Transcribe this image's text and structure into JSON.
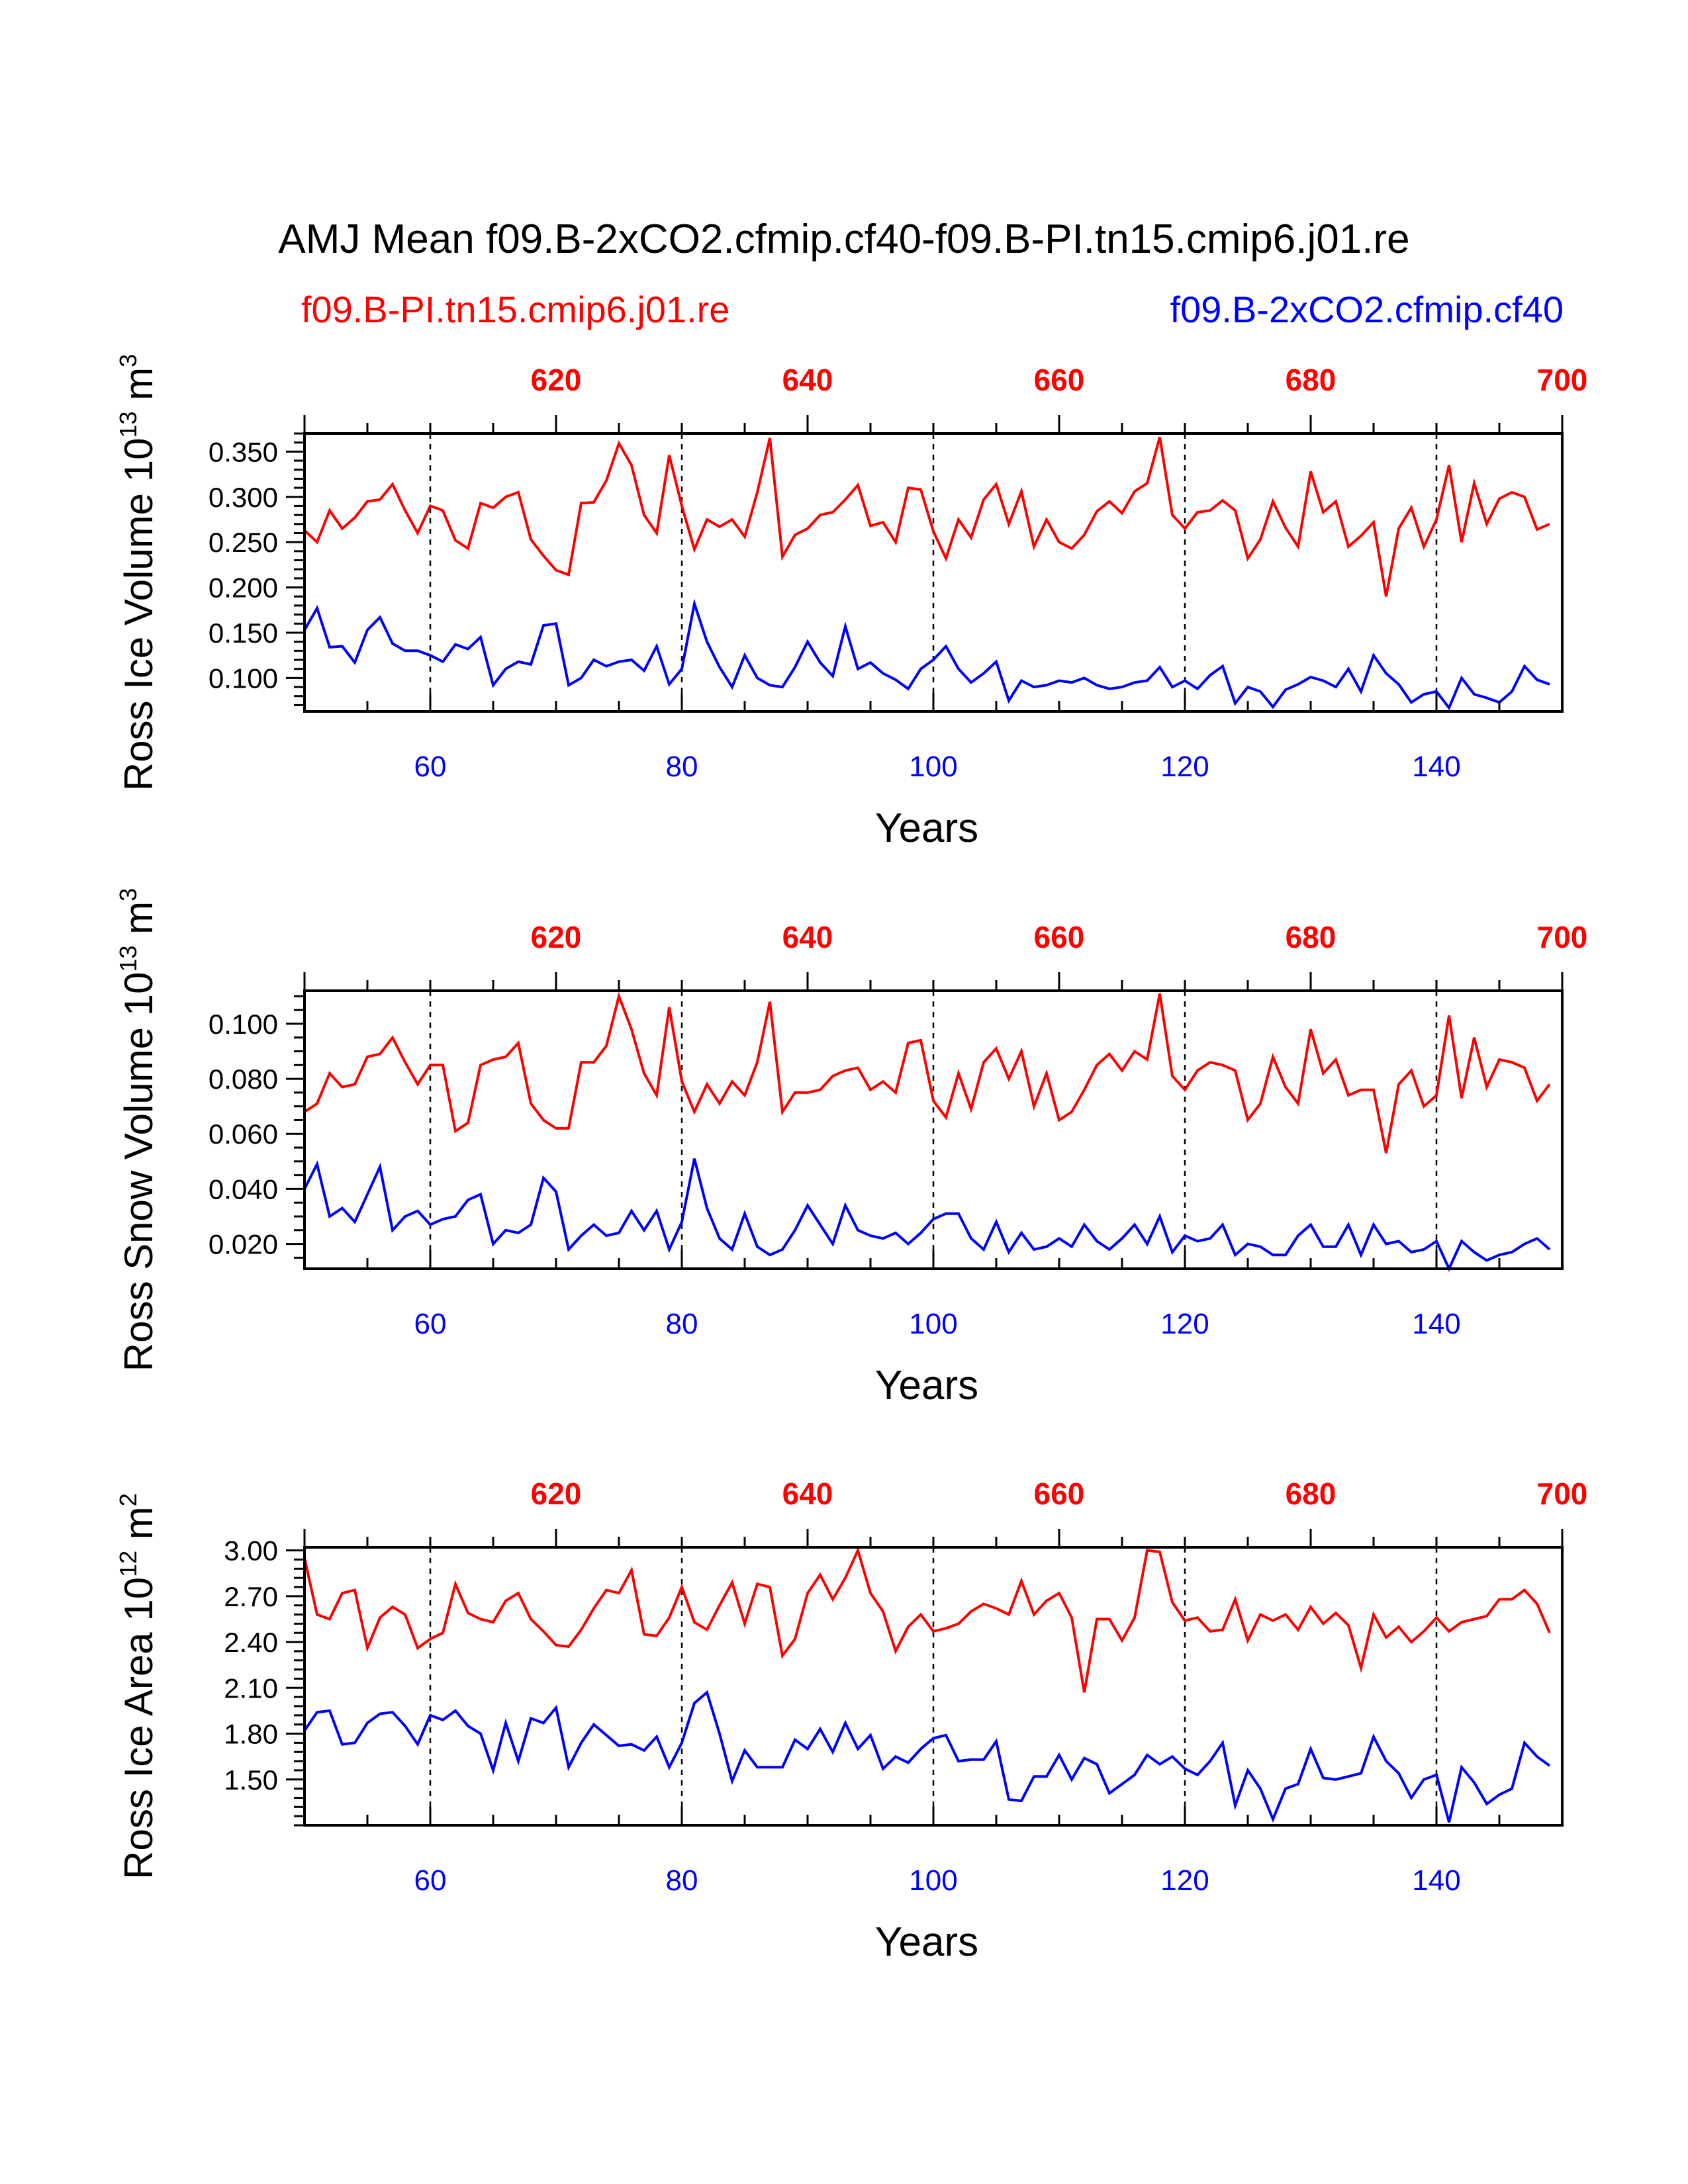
{
  "title": "AMJ Mean f09.B-2xCO2.cfmip.cf40-f09.B-PI.tn15.cmip6.j01.re",
  "subtitle_left": "f09.B-PI.tn15.cmip6.j01.re",
  "subtitle_right": "f09.B-2xCO2.cfmip.cf40",
  "colors": {
    "pi": "#ff0000",
    "co2": "#0000ff",
    "axis": "#000000"
  },
  "chart_data": [
    {
      "type": "line",
      "ylabel_main": "Ross Ice Volume 10",
      "ylabel_exp": "13",
      "ylabel_unit": " m",
      "ylabel_unit_exp": "3",
      "xlabel": "Years",
      "xlim": [
        50,
        150
      ],
      "ylim": [
        0.063,
        0.37
      ],
      "yticks": [
        {
          "v": 0.1,
          "label": "0.100"
        },
        {
          "v": 0.15,
          "label": "0.150"
        },
        {
          "v": 0.2,
          "label": "0.200"
        },
        {
          "v": 0.25,
          "label": "0.250"
        },
        {
          "v": 0.3,
          "label": "0.300"
        },
        {
          "v": 0.35,
          "label": "0.350"
        }
      ],
      "yminor_step": 0.01,
      "xticks": [
        60,
        80,
        100,
        120,
        140
      ],
      "xtick_labels": [
        "60",
        "80",
        "100",
        "120",
        "140"
      ],
      "top_ticks": [
        620,
        640,
        660,
        680,
        700
      ],
      "top_tick_labels": [
        "620",
        "640",
        "660",
        "680",
        "700"
      ],
      "top_offset": 550,
      "vlines": [
        60,
        80,
        100,
        120,
        140
      ],
      "x_start": 50,
      "series": [
        {
          "name": "f09.B-PI.tn15.cmip6.j01.re",
          "color": "#ff0000",
          "values": [
            0.263,
            0.25,
            0.285,
            0.265,
            0.277,
            0.295,
            0.297,
            0.314,
            0.285,
            0.26,
            0.29,
            0.285,
            0.252,
            0.243,
            0.293,
            0.288,
            0.3,
            0.305,
            0.253,
            0.235,
            0.219,
            0.214,
            0.293,
            0.294,
            0.318,
            0.359,
            0.335,
            0.28,
            0.26,
            0.346,
            0.29,
            0.242,
            0.275,
            0.267,
            0.275,
            0.256,
            0.305,
            0.365,
            0.234,
            0.258,
            0.265,
            0.28,
            0.283,
            0.297,
            0.313,
            0.268,
            0.272,
            0.25,
            0.31,
            0.308,
            0.262,
            0.232,
            0.275,
            0.255,
            0.297,
            0.314,
            0.27,
            0.306,
            0.245,
            0.275,
            0.25,
            0.243,
            0.258,
            0.284,
            0.295,
            0.282,
            0.306,
            0.315,
            0.366,
            0.28,
            0.265,
            0.283,
            0.285,
            0.296,
            0.285,
            0.232,
            0.253,
            0.295,
            0.266,
            0.245,
            0.328,
            0.283,
            0.295,
            0.245,
            0.257,
            0.272,
            0.19,
            0.265,
            0.288,
            0.245,
            0.275,
            0.335,
            0.25,
            0.315,
            0.27,
            0.298,
            0.305,
            0.3,
            0.264,
            0.27
          ]
        },
        {
          "name": "f09.B-2xCO2.cfmip.cf40",
          "color": "#0000ff",
          "values": [
            0.153,
            0.177,
            0.134,
            0.135,
            0.117,
            0.153,
            0.167,
            0.138,
            0.13,
            0.13,
            0.125,
            0.118,
            0.137,
            0.132,
            0.145,
            0.092,
            0.11,
            0.118,
            0.115,
            0.158,
            0.16,
            0.092,
            0.1,
            0.12,
            0.113,
            0.118,
            0.12,
            0.108,
            0.135,
            0.093,
            0.11,
            0.182,
            0.14,
            0.112,
            0.09,
            0.125,
            0.1,
            0.092,
            0.09,
            0.112,
            0.14,
            0.117,
            0.102,
            0.157,
            0.11,
            0.117,
            0.105,
            0.098,
            0.088,
            0.11,
            0.12,
            0.135,
            0.11,
            0.095,
            0.105,
            0.118,
            0.075,
            0.097,
            0.09,
            0.092,
            0.097,
            0.095,
            0.1,
            0.092,
            0.088,
            0.09,
            0.095,
            0.097,
            0.112,
            0.09,
            0.097,
            0.088,
            0.103,
            0.113,
            0.072,
            0.09,
            0.085,
            0.068,
            0.087,
            0.093,
            0.101,
            0.097,
            0.09,
            0.11,
            0.085,
            0.125,
            0.105,
            0.093,
            0.073,
            0.082,
            0.085,
            0.067,
            0.1,
            0.082,
            0.078,
            0.073,
            0.085,
            0.113,
            0.098,
            0.093
          ]
        }
      ]
    },
    {
      "type": "line",
      "ylabel_main": "Ross Snow Volume 10",
      "ylabel_exp": "13",
      "ylabel_unit": " m",
      "ylabel_unit_exp": "3",
      "xlabel": "Years",
      "xlim": [
        50,
        150
      ],
      "ylim": [
        0.011,
        0.112
      ],
      "yticks": [
        {
          "v": 0.02,
          "label": "0.020"
        },
        {
          "v": 0.04,
          "label": "0.040"
        },
        {
          "v": 0.06,
          "label": "0.060"
        },
        {
          "v": 0.08,
          "label": "0.080"
        },
        {
          "v": 0.1,
          "label": "0.100"
        }
      ],
      "yminor_step": 0.005,
      "xticks": [
        60,
        80,
        100,
        120,
        140
      ],
      "xtick_labels": [
        "60",
        "80",
        "100",
        "120",
        "140"
      ],
      "top_ticks": [
        620,
        640,
        660,
        680,
        700
      ],
      "top_tick_labels": [
        "620",
        "640",
        "660",
        "680",
        "700"
      ],
      "top_offset": 550,
      "vlines": [
        60,
        80,
        100,
        120,
        140
      ],
      "x_start": 50,
      "series": [
        {
          "name": "f09.B-PI.tn15.cmip6.j01.re",
          "color": "#ff0000",
          "values": [
            0.068,
            0.071,
            0.082,
            0.077,
            0.078,
            0.088,
            0.089,
            0.095,
            0.086,
            0.078,
            0.085,
            0.085,
            0.061,
            0.064,
            0.085,
            0.087,
            0.088,
            0.093,
            0.071,
            0.065,
            0.062,
            0.062,
            0.086,
            0.086,
            0.092,
            0.11,
            0.098,
            0.082,
            0.074,
            0.106,
            0.079,
            0.068,
            0.078,
            0.071,
            0.079,
            0.074,
            0.086,
            0.108,
            0.068,
            0.075,
            0.075,
            0.076,
            0.081,
            0.083,
            0.084,
            0.076,
            0.079,
            0.075,
            0.093,
            0.094,
            0.072,
            0.066,
            0.082,
            0.069,
            0.086,
            0.091,
            0.08,
            0.09,
            0.07,
            0.082,
            0.065,
            0.068,
            0.076,
            0.085,
            0.089,
            0.083,
            0.09,
            0.087,
            0.111,
            0.081,
            0.076,
            0.083,
            0.086,
            0.085,
            0.083,
            0.065,
            0.071,
            0.088,
            0.077,
            0.071,
            0.098,
            0.082,
            0.087,
            0.074,
            0.076,
            0.076,
            0.053,
            0.078,
            0.083,
            0.07,
            0.074,
            0.103,
            0.073,
            0.095,
            0.077,
            0.087,
            0.086,
            0.084,
            0.072,
            0.078
          ]
        },
        {
          "name": "f09.B-2xCO2.cfmip.cf40",
          "color": "#0000ff",
          "values": [
            0.04,
            0.049,
            0.03,
            0.033,
            0.028,
            0.038,
            0.048,
            0.025,
            0.03,
            0.032,
            0.027,
            0.029,
            0.03,
            0.036,
            0.038,
            0.02,
            0.025,
            0.024,
            0.027,
            0.044,
            0.039,
            0.018,
            0.023,
            0.027,
            0.023,
            0.024,
            0.032,
            0.025,
            0.032,
            0.018,
            0.028,
            0.051,
            0.033,
            0.022,
            0.018,
            0.031,
            0.019,
            0.016,
            0.018,
            0.025,
            0.034,
            0.027,
            0.02,
            0.034,
            0.025,
            0.023,
            0.022,
            0.024,
            0.02,
            0.024,
            0.029,
            0.031,
            0.031,
            0.022,
            0.018,
            0.028,
            0.017,
            0.024,
            0.018,
            0.019,
            0.022,
            0.019,
            0.027,
            0.021,
            0.018,
            0.022,
            0.027,
            0.02,
            0.03,
            0.017,
            0.023,
            0.021,
            0.022,
            0.027,
            0.016,
            0.02,
            0.019,
            0.016,
            0.016,
            0.023,
            0.027,
            0.019,
            0.019,
            0.027,
            0.016,
            0.027,
            0.02,
            0.021,
            0.017,
            0.018,
            0.021,
            0.011,
            0.021,
            0.017,
            0.014,
            0.016,
            0.017,
            0.02,
            0.022,
            0.018
          ]
        }
      ]
    },
    {
      "type": "line",
      "ylabel_main": "Ross Ice Area 10",
      "ylabel_exp": "12",
      "ylabel_unit": " m",
      "ylabel_unit_exp": "2",
      "xlabel": "Years",
      "xlim": [
        50,
        150
      ],
      "ylim": [
        1.2,
        3.02
      ],
      "yticks": [
        {
          "v": 1.5,
          "label": "1.50"
        },
        {
          "v": 1.8,
          "label": "1.80"
        },
        {
          "v": 2.1,
          "label": "2.10"
        },
        {
          "v": 2.4,
          "label": "2.40"
        },
        {
          "v": 2.7,
          "label": "2.70"
        },
        {
          "v": 3.0,
          "label": "3.00"
        }
      ],
      "yminor_step": 0.06,
      "xticks": [
        60,
        80,
        100,
        120,
        140
      ],
      "xtick_labels": [
        "60",
        "80",
        "100",
        "120",
        "140"
      ],
      "top_ticks": [
        620,
        640,
        660,
        680,
        700
      ],
      "top_tick_labels": [
        "620",
        "640",
        "660",
        "680",
        "700"
      ],
      "top_offset": 550,
      "vlines": [
        60,
        80,
        100,
        120,
        140
      ],
      "x_start": 50,
      "series": [
        {
          "name": "f09.B-PI.tn15.cmip6.j01.re",
          "color": "#ff0000",
          "values": [
            2.95,
            2.58,
            2.55,
            2.72,
            2.74,
            2.36,
            2.56,
            2.63,
            2.58,
            2.36,
            2.42,
            2.46,
            2.78,
            2.59,
            2.55,
            2.53,
            2.67,
            2.72,
            2.55,
            2.47,
            2.38,
            2.37,
            2.48,
            2.62,
            2.74,
            2.72,
            2.87,
            2.45,
            2.44,
            2.56,
            2.76,
            2.53,
            2.48,
            2.64,
            2.79,
            2.52,
            2.78,
            2.76,
            2.31,
            2.42,
            2.72,
            2.84,
            2.68,
            2.82,
            3.0,
            2.72,
            2.6,
            2.34,
            2.5,
            2.58,
            2.47,
            2.49,
            2.52,
            2.6,
            2.65,
            2.62,
            2.58,
            2.8,
            2.58,
            2.67,
            2.72,
            2.56,
            2.07,
            2.55,
            2.55,
            2.41,
            2.56,
            3.0,
            2.99,
            2.66,
            2.54,
            2.56,
            2.47,
            2.48,
            2.68,
            2.41,
            2.58,
            2.54,
            2.58,
            2.48,
            2.63,
            2.52,
            2.59,
            2.51,
            2.23,
            2.58,
            2.43,
            2.5,
            2.4,
            2.47,
            2.56,
            2.47,
            2.53,
            2.55,
            2.57,
            2.68,
            2.68,
            2.74,
            2.65,
            2.46
          ]
        },
        {
          "name": "f09.B-2xCO2.cfmip.cf40",
          "color": "#0000ff",
          "values": [
            1.82,
            1.94,
            1.95,
            1.73,
            1.74,
            1.87,
            1.93,
            1.94,
            1.85,
            1.73,
            1.92,
            1.89,
            1.95,
            1.85,
            1.8,
            1.56,
            1.87,
            1.62,
            1.9,
            1.87,
            1.97,
            1.58,
            1.74,
            1.86,
            1.79,
            1.72,
            1.73,
            1.69,
            1.78,
            1.58,
            1.74,
            2.0,
            2.07,
            1.8,
            1.49,
            1.69,
            1.58,
            1.58,
            1.58,
            1.76,
            1.7,
            1.83,
            1.68,
            1.87,
            1.7,
            1.79,
            1.57,
            1.65,
            1.61,
            1.7,
            1.77,
            1.79,
            1.62,
            1.63,
            1.63,
            1.75,
            1.37,
            1.36,
            1.52,
            1.52,
            1.66,
            1.5,
            1.64,
            1.6,
            1.41,
            1.47,
            1.53,
            1.66,
            1.6,
            1.65,
            1.57,
            1.53,
            1.62,
            1.74,
            1.33,
            1.56,
            1.44,
            1.24,
            1.44,
            1.47,
            1.7,
            1.51,
            1.5,
            1.52,
            1.54,
            1.78,
            1.62,
            1.54,
            1.38,
            1.5,
            1.53,
            1.22,
            1.58,
            1.48,
            1.34,
            1.4,
            1.44,
            1.74,
            1.65,
            1.59
          ]
        }
      ]
    }
  ]
}
